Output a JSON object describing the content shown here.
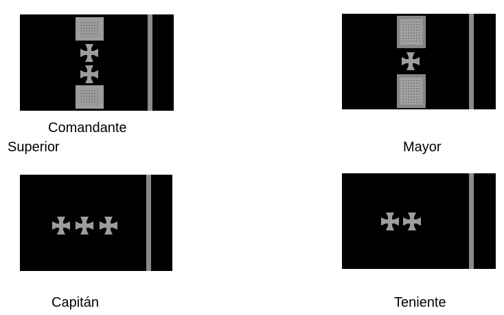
{
  "insignia": [
    {
      "id": "comandante-superior",
      "label_line1": "Comandante",
      "label_line2": "Superior",
      "cross_count": 2,
      "square_blocks": 2
    },
    {
      "id": "mayor",
      "label": "Mayor",
      "cross_count": 1,
      "square_blocks": 2
    },
    {
      "id": "capitan",
      "label": "Capitán",
      "cross_count": 3,
      "square_blocks": 0
    },
    {
      "id": "teniente",
      "label": "Teniente",
      "cross_count": 2,
      "square_blocks": 0
    }
  ],
  "colors": {
    "panel": "#000000",
    "ornament": "#9d9d9d",
    "stripe": "#8a8a8a",
    "background": "#ffffff"
  },
  "icons": {
    "ornament": "cross-pattee-icon"
  }
}
